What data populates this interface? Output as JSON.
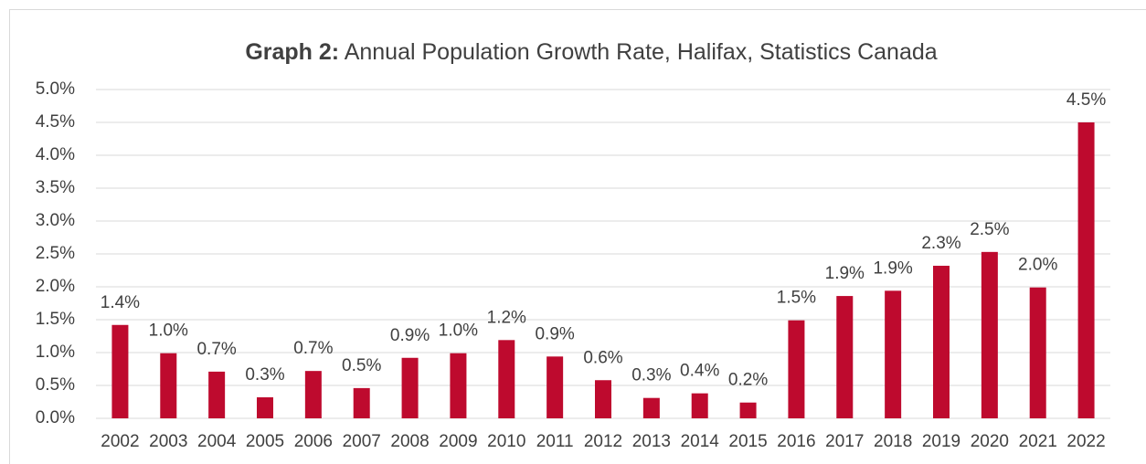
{
  "chart_data": {
    "type": "bar",
    "title_label": "Graph 2:",
    "title": "Annual Population Growth Rate, Halifax, Statistics Canada",
    "categories": [
      "2002",
      "2003",
      "2004",
      "2005",
      "2006",
      "2007",
      "2008",
      "2009",
      "2010",
      "2011",
      "2012",
      "2013",
      "2014",
      "2015",
      "2016",
      "2017",
      "2018",
      "2019",
      "2020",
      "2021",
      "2022"
    ],
    "values": [
      1.42,
      0.99,
      0.71,
      0.32,
      0.72,
      0.46,
      0.92,
      0.99,
      1.19,
      0.94,
      0.58,
      0.31,
      0.38,
      0.24,
      1.49,
      1.86,
      1.94,
      2.32,
      2.53,
      1.99,
      4.5
    ],
    "value_labels": [
      "1.4%",
      "1.0%",
      "0.7%",
      "0.3%",
      "0.7%",
      "0.5%",
      "0.9%",
      "1.0%",
      "1.2%",
      "0.9%",
      "0.6%",
      "0.3%",
      "0.4%",
      "0.2%",
      "1.5%",
      "1.9%",
      "1.9%",
      "2.3%",
      "2.5%",
      "2.0%",
      "4.5%"
    ],
    "color": "#be0a2e",
    "ylim": [
      0,
      5
    ],
    "yticks": [
      {
        "value": 0,
        "label": "0.0%"
      },
      {
        "value": 0.5,
        "label": "0.5%"
      },
      {
        "value": 1,
        "label": "1.0%"
      },
      {
        "value": 1.5,
        "label": "1.5%"
      },
      {
        "value": 2,
        "label": "2.0%"
      },
      {
        "value": 2.5,
        "label": "2.5%"
      },
      {
        "value": 3,
        "label": "3.0%"
      },
      {
        "value": 3.5,
        "label": "3.5%"
      },
      {
        "value": 4,
        "label": "4.0%"
      },
      {
        "value": 4.5,
        "label": "4.5%"
      },
      {
        "value": 5,
        "label": "5.0%"
      }
    ],
    "grid": true
  }
}
